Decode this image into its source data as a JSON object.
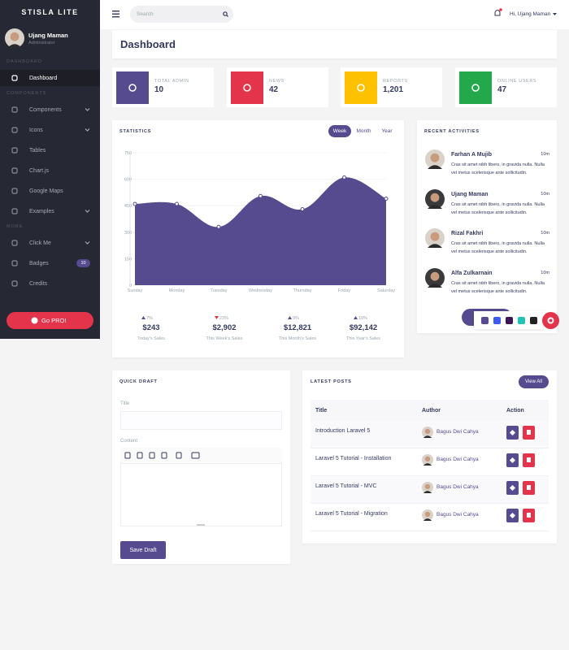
{
  "brand": "STISLA LITE",
  "user": {
    "name": "Ujang Maman",
    "role": "Administrator"
  },
  "sidebar": [
    {
      "header": "DASHBOARD",
      "items": [
        {
          "label": "Dashboard",
          "active": true
        }
      ]
    },
    {
      "header": "COMPONENTS",
      "items": [
        {
          "label": "Components",
          "submenu": true
        },
        {
          "label": "Icons",
          "submenu": true
        },
        {
          "label": "Tables"
        },
        {
          "label": "Chart.js"
        },
        {
          "label": "Google Maps"
        },
        {
          "label": "Examples",
          "submenu": true
        }
      ]
    },
    {
      "header": "MORE",
      "items": [
        {
          "label": "Click Me",
          "submenu": true
        },
        {
          "label": "Badges",
          "badge": "10"
        },
        {
          "label": "Credits"
        }
      ]
    }
  ],
  "go_pro": "Go PRO!",
  "topbar": {
    "search_placeholder": "Search",
    "greeting": "Hi, Ujang Maman"
  },
  "page_title": "Dashboard",
  "stats": [
    {
      "label": "TOTAL ADMIN",
      "value": "10",
      "color": "#574b90"
    },
    {
      "label": "NEWS",
      "value": "42",
      "color": "#e3344b"
    },
    {
      "label": "REPORTS",
      "value": "1,201",
      "color": "#fdc100"
    },
    {
      "label": "ONLINE USERS",
      "value": "47",
      "color": "#23a84b"
    }
  ],
  "statistics": {
    "title": "STATISTICS",
    "tabs": [
      "Week",
      "Month",
      "Year"
    ],
    "active_tab": 0,
    "chart": {
      "type": "area",
      "categories": [
        "Sunday",
        "Monday",
        "Tuesday",
        "Wednesday",
        "Thursday",
        "Friday",
        "Saturday"
      ],
      "values": [
        460,
        460,
        330,
        505,
        430,
        610,
        490
      ],
      "color": "#574b90",
      "ylim": [
        0,
        750
      ],
      "yticks": [
        0,
        150,
        300,
        450,
        600,
        750
      ],
      "grid": true
    },
    "summaries": [
      {
        "change": "7%",
        "direction": "up",
        "amount": "$243",
        "label": "Today's Sales"
      },
      {
        "change": "23%",
        "direction": "down",
        "amount": "$2,902",
        "label": "This Week's Sales"
      },
      {
        "change": "9%",
        "direction": "up",
        "amount": "$12,821",
        "label": "This Month's Sales"
      },
      {
        "change": "19%",
        "direction": "up",
        "amount": "$92,142",
        "label": "This Year's Sales"
      }
    ]
  },
  "recent_activities": {
    "title": "RECENT ACTIVITIES",
    "items": [
      {
        "name": "Farhan A Mujib",
        "time": "10m",
        "text": "Cras sit amet nibh libero, in gravida nulla. Nulla vel metus scelerisque ante sollicitudin."
      },
      {
        "name": "Ujang Maman",
        "time": "10m",
        "text": "Cras sit amet nibh libero, in gravida nulla. Nulla vel metus scelerisque ante sollicitudin."
      },
      {
        "name": "Rizal Fakhri",
        "time": "10m",
        "text": "Cras sit amet nibh libero, in gravida nulla. Nulla vel metus scelerisque ante sollicitudin."
      },
      {
        "name": "Alfa Zulkarnain",
        "time": "10m",
        "text": "Cras sit amet nibh libero, in gravida nulla. Nulla vel metus scelerisque ante sollicitudin."
      }
    ]
  },
  "quick_draft": {
    "title": "QUICK DRAFT",
    "title_label": "Title",
    "content_label": "Content",
    "button": "Save Draft"
  },
  "latest_posts": {
    "title": "LATEST POSTS",
    "button": "View All",
    "columns": [
      "Title",
      "Author",
      "Action"
    ],
    "rows": [
      {
        "title": "Introduction Laravel 5",
        "author": "Bagus Dwi Cahya"
      },
      {
        "title": "Laravel 5 Tutorial - Installation",
        "author": "Bagus Dwi Cahya"
      },
      {
        "title": "Laravel 5 Tutorial - MVC",
        "author": "Bagus Dwi Cahya"
      },
      {
        "title": "Laravel 5 Tutorial - Migration",
        "author": "Bagus Dwi Cahya"
      }
    ]
  }
}
